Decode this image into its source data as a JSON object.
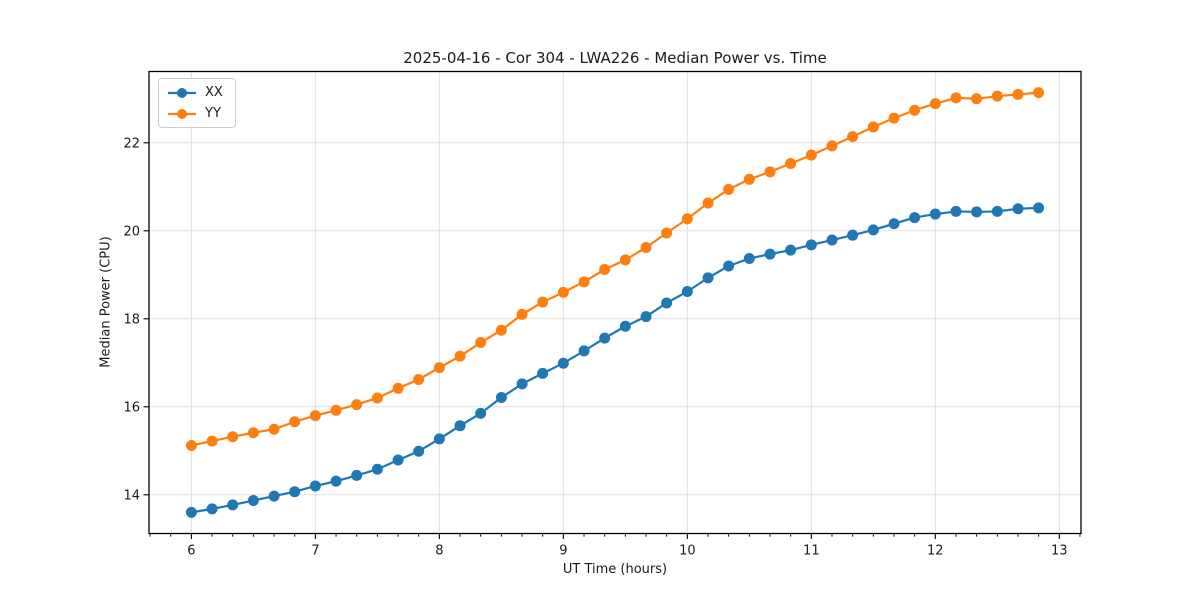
{
  "chart_data": {
    "type": "line",
    "title": "2025-04-16 - Cor 304 - LWA226 - Median Power vs. Time",
    "xlabel": "UT Time (hours)",
    "ylabel": "Median Power (CPU)",
    "xlim": [
      5.658,
      13.175
    ],
    "ylim": [
      13.12,
      23.62
    ],
    "xticks": [
      6,
      7,
      8,
      9,
      10,
      11,
      12,
      13
    ],
    "yticks": [
      14,
      16,
      18,
      20,
      22
    ],
    "x_minor_step": 0.16667,
    "grid": true,
    "legend_position": "upper-left",
    "marker": "circle",
    "x": [
      6.0,
      6.167,
      6.333,
      6.5,
      6.667,
      6.833,
      7.0,
      7.167,
      7.333,
      7.5,
      7.667,
      7.833,
      8.0,
      8.167,
      8.333,
      8.5,
      8.667,
      8.833,
      9.0,
      9.167,
      9.333,
      9.5,
      9.667,
      9.833,
      10.0,
      10.167,
      10.333,
      10.5,
      10.667,
      10.833,
      11.0,
      11.167,
      11.333,
      11.5,
      11.667,
      11.833,
      12.0,
      12.167,
      12.333,
      12.5,
      12.667,
      12.833
    ],
    "series": [
      {
        "name": "XX",
        "color": "#1f77b4",
        "values": [
          13.6,
          13.68,
          13.77,
          13.87,
          13.97,
          14.07,
          14.2,
          14.31,
          14.44,
          14.58,
          14.79,
          14.99,
          15.27,
          15.57,
          15.85,
          16.21,
          16.52,
          16.76,
          16.99,
          17.27,
          17.56,
          17.83,
          18.05,
          18.36,
          18.62,
          18.93,
          19.2,
          19.37,
          19.47,
          19.56,
          19.68,
          19.79,
          19.9,
          20.02,
          20.16,
          20.3,
          20.38,
          20.44,
          20.43,
          20.44,
          20.5,
          20.52
        ]
      },
      {
        "name": "YY",
        "color": "#ff7f0e",
        "values": [
          15.12,
          15.22,
          15.32,
          15.41,
          15.49,
          15.66,
          15.8,
          15.92,
          16.05,
          16.2,
          16.42,
          16.62,
          16.89,
          17.15,
          17.46,
          17.74,
          18.1,
          18.38,
          18.6,
          18.84,
          19.12,
          19.34,
          19.62,
          19.95,
          20.27,
          20.63,
          20.94,
          21.17,
          21.34,
          21.53,
          21.72,
          21.93,
          22.14,
          22.36,
          22.56,
          22.74,
          22.89,
          23.02,
          23.0,
          23.06,
          23.1,
          23.14
        ]
      }
    ],
    "style": {
      "grid_color": "#e0e0e0",
      "spine_color": "#000000",
      "text_color": "#1a1a1a",
      "background": "#ffffff"
    }
  }
}
